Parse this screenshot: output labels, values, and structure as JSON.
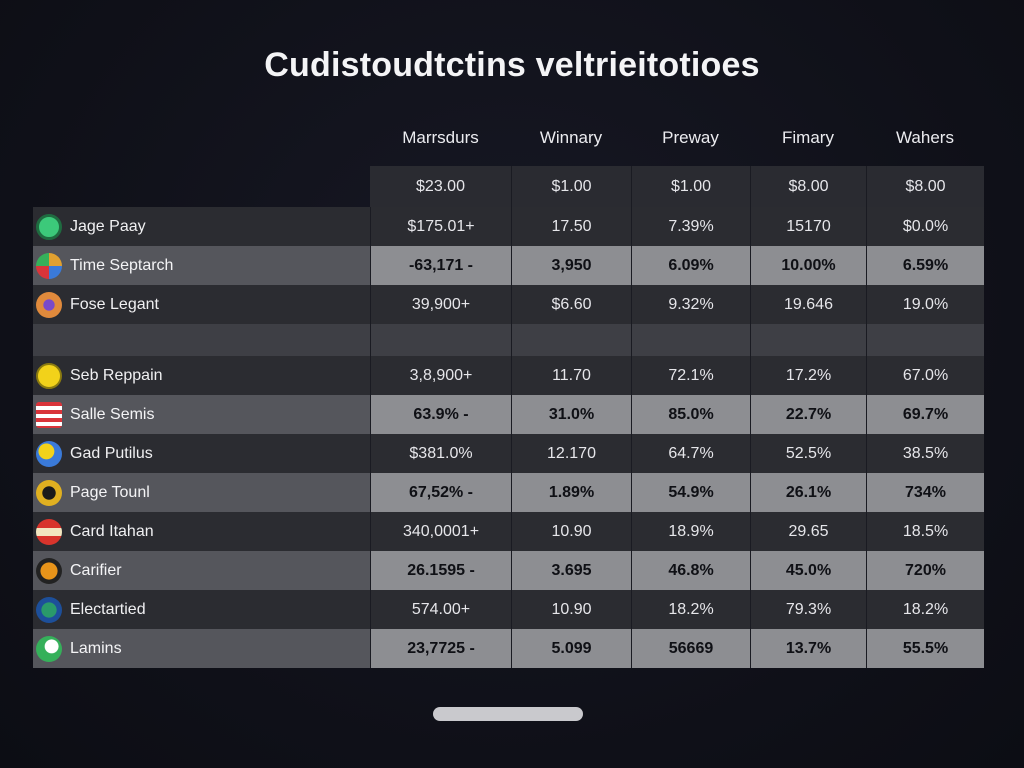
{
  "title": "Cudistoudtctins veltrieitotioes",
  "columns": [
    "Marrsdurs",
    "Winnary",
    "Preway",
    "Fimary",
    "Wahers"
  ],
  "baseline": [
    "$23.00",
    "$1.00",
    "$1.00",
    "$8.00",
    "$8.00"
  ],
  "rows": [
    {
      "name": "Jage Paay",
      "values": [
        "$175.01+",
        "17.50",
        "7.39%",
        "15170",
        "$0.0%"
      ],
      "logo": "green-circle-logo",
      "logo_color": "#3cc97a"
    },
    {
      "name": "Time Septarch",
      "values": [
        "-63,171 -",
        "3,950",
        "6.09%",
        "10.00%",
        "6.59%"
      ],
      "logo": "multicolor-crest-logo",
      "logo_color": "#e0a030"
    },
    {
      "name": "Fose Legant",
      "values": [
        "39,900+",
        "$6.60",
        "9.32%",
        "19.646",
        "19.0%"
      ],
      "logo": "orange-crest-logo",
      "logo_color": "#e08a3c"
    },
    {
      "name": "Seb Reppain",
      "values": [
        "3,8,900+",
        "11.70",
        "72.1%",
        "17.2%",
        "67.0%"
      ],
      "logo": "yellow-circle-logo",
      "logo_color": "#f2d21a"
    },
    {
      "name": "Salle Semis",
      "values": [
        "63.9% -",
        "31.0%",
        "85.0%",
        "22.7%",
        "69.7%"
      ],
      "logo": "flag-logo",
      "logo_color": "#d9343a"
    },
    {
      "name": "Gad Putilus",
      "values": [
        "$381.0%",
        "12.170",
        "64.7%",
        "52.5%",
        "38.5%"
      ],
      "logo": "blue-yellow-logo",
      "logo_color": "#3a7ad9"
    },
    {
      "name": "Page Tounl",
      "values": [
        "67,52% -",
        "1.89%",
        "54.9%",
        "26.1%",
        "734%"
      ],
      "logo": "black-gold-logo",
      "logo_color": "#e0b020"
    },
    {
      "name": "Card Itahan",
      "values": [
        "340,0001+",
        "10.90",
        "18.9%",
        "29.65",
        "18.5%"
      ],
      "logo": "red-banner-logo",
      "logo_color": "#d8342c"
    },
    {
      "name": "Carifier",
      "values": [
        "26.1595 -",
        "3.695",
        "46.8%",
        "45.0%",
        "720%"
      ],
      "logo": "orange-shield-logo",
      "logo_color": "#e8941a"
    },
    {
      "name": "Electartied",
      "values": [
        "574.00+",
        "10.90",
        "18.2%",
        "79.3%",
        "18.2%"
      ],
      "logo": "green-blue-crest-logo",
      "logo_color": "#2a9a6a"
    },
    {
      "name": "Lamins",
      "values": [
        "23,7725 -",
        "5.099",
        "56669",
        "13.7%",
        "55.5%"
      ],
      "logo": "green-white-logo",
      "logo_color": "#35b05a"
    }
  ],
  "colors": {
    "background": "#11121b",
    "row_dark": "#2b2c31",
    "row_mid": "#3a3b40",
    "row_light": "#8a8b8f",
    "row_lighter": "#a3a4a8",
    "scrollbar": "#c9c9cd"
  }
}
